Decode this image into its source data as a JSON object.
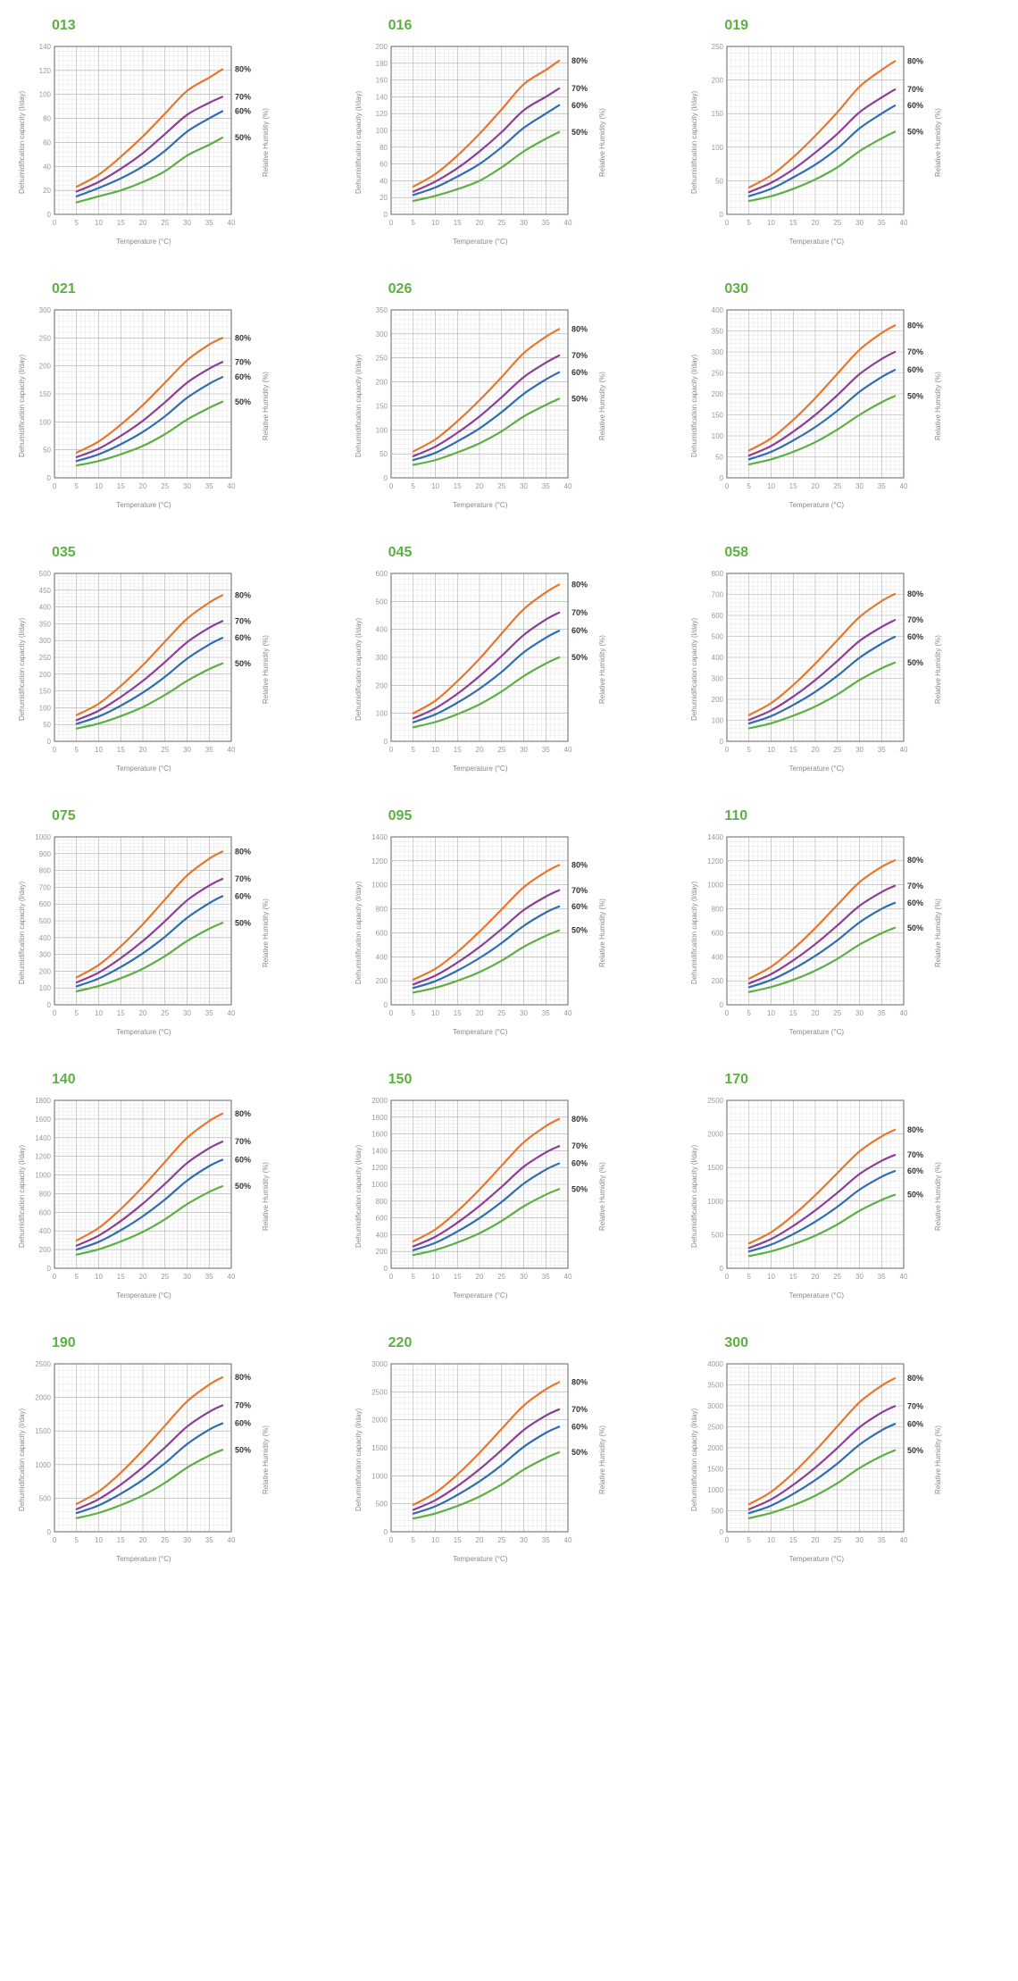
{
  "global": {
    "xlabel": "Temperature (°C)",
    "ylabel_left": "Dehumidification capacity (l/day)",
    "ylabel_right": "Relative Humidity (%)",
    "x_min": 0,
    "x_max": 40,
    "x_tick_step": 5,
    "title_color": "#5cb043",
    "bg_color": "#ffffff",
    "plot_bg": "#ffffff",
    "grid_color_major": "#aaaaaa",
    "grid_color_minor": "#e5e5e5",
    "axis_color": "#666666",
    "tick_text_color": "#999999",
    "line_width": 2.2,
    "title_fontsize": 16,
    "tick_fontsize": 8,
    "label_fontsize": 8,
    "series_label_fontsize": 9,
    "series_labels": [
      "80%",
      "70%",
      "60%",
      "50%"
    ],
    "series_colors": [
      "#e8762d",
      "#8e3d96",
      "#2f6db1",
      "#5cb043"
    ],
    "x_values": [
      5,
      10,
      15,
      20,
      25,
      30,
      35,
      38
    ]
  },
  "charts": [
    {
      "title": "013",
      "y_max": 140,
      "y_tick_step": 20,
      "series": [
        [
          23,
          33,
          48,
          65,
          84,
          103,
          114,
          121
        ],
        [
          19,
          27,
          38,
          51,
          67,
          83,
          93,
          98
        ],
        [
          15,
          22,
          30,
          40,
          53,
          69,
          80,
          86
        ],
        [
          10,
          15,
          20,
          27,
          36,
          49,
          58,
          64
        ]
      ]
    },
    {
      "title": "016",
      "y_max": 200,
      "y_tick_step": 20,
      "series": [
        [
          33,
          48,
          70,
          96,
          125,
          155,
          172,
          183
        ],
        [
          27,
          39,
          55,
          75,
          98,
          124,
          140,
          150
        ],
        [
          23,
          32,
          45,
          60,
          80,
          103,
          120,
          130
        ],
        [
          16,
          22,
          30,
          40,
          56,
          75,
          90,
          98
        ]
      ]
    },
    {
      "title": "019",
      "y_max": 250,
      "y_tick_step": 50,
      "series": [
        [
          40,
          58,
          85,
          117,
          152,
          190,
          215,
          228
        ],
        [
          33,
          47,
          67,
          92,
          120,
          152,
          174,
          186
        ],
        [
          27,
          38,
          55,
          74,
          98,
          128,
          150,
          162
        ],
        [
          20,
          27,
          38,
          52,
          70,
          94,
          113,
          123
        ]
      ]
    },
    {
      "title": "021",
      "y_max": 300,
      "y_tick_step": 50,
      "series": [
        [
          45,
          65,
          95,
          130,
          170,
          210,
          238,
          250
        ],
        [
          37,
          52,
          75,
          102,
          135,
          170,
          195,
          207
        ],
        [
          30,
          42,
          60,
          82,
          110,
          143,
          168,
          180
        ],
        [
          22,
          30,
          42,
          57,
          78,
          104,
          125,
          136
        ]
      ]
    },
    {
      "title": "026",
      "y_max": 350,
      "y_tick_step": 50,
      "series": [
        [
          55,
          80,
          118,
          162,
          210,
          260,
          294,
          310
        ],
        [
          45,
          65,
          94,
          128,
          168,
          210,
          240,
          255
        ],
        [
          37,
          52,
          76,
          103,
          137,
          175,
          205,
          220
        ],
        [
          27,
          37,
          53,
          72,
          97,
          128,
          152,
          165
        ]
      ]
    },
    {
      "title": "030",
      "y_max": 400,
      "y_tick_step": 50,
      "series": [
        [
          65,
          94,
          138,
          190,
          248,
          305,
          345,
          363
        ],
        [
          53,
          76,
          110,
          150,
          197,
          247,
          283,
          300
        ],
        [
          44,
          62,
          89,
          121,
          160,
          205,
          240,
          257
        ],
        [
          32,
          44,
          62,
          85,
          115,
          150,
          180,
          195
        ]
      ]
    },
    {
      "title": "035",
      "y_max": 500,
      "y_tick_step": 50,
      "series": [
        [
          78,
          112,
          165,
          227,
          297,
          365,
          413,
          435
        ],
        [
          63,
          91,
          132,
          180,
          236,
          295,
          338,
          358
        ],
        [
          52,
          74,
          106,
          145,
          192,
          246,
          288,
          308
        ],
        [
          38,
          53,
          75,
          102,
          138,
          180,
          215,
          232
        ]
      ]
    },
    {
      "title": "045",
      "y_max": 600,
      "y_tick_step": 100,
      "series": [
        [
          100,
          145,
          215,
          295,
          385,
          472,
          532,
          560
        ],
        [
          82,
          118,
          170,
          233,
          305,
          380,
          435,
          460
        ],
        [
          68,
          96,
          138,
          188,
          248,
          318,
          370,
          395
        ],
        [
          50,
          69,
          97,
          132,
          178,
          233,
          278,
          300
        ]
      ]
    },
    {
      "title": "058",
      "y_max": 800,
      "y_tick_step": 100,
      "series": [
        [
          125,
          182,
          268,
          370,
          482,
          592,
          668,
          702
        ],
        [
          102,
          147,
          213,
          292,
          383,
          478,
          545,
          578
        ],
        [
          85,
          120,
          173,
          236,
          312,
          398,
          465,
          498
        ],
        [
          62,
          86,
          122,
          166,
          223,
          292,
          348,
          375
        ]
      ]
    },
    {
      "title": "075",
      "y_max": 1000,
      "y_tick_step": 100,
      "series": [
        [
          163,
          237,
          348,
          480,
          627,
          770,
          870,
          913
        ],
        [
          133,
          192,
          278,
          380,
          498,
          622,
          710,
          750
        ],
        [
          110,
          156,
          225,
          307,
          405,
          518,
          605,
          647
        ],
        [
          80,
          112,
          158,
          215,
          290,
          380,
          453,
          488
        ]
      ]
    },
    {
      "title": "095",
      "y_max": 1400,
      "y_tick_step": 200,
      "series": [
        [
          210,
          300,
          440,
          610,
          795,
          980,
          1108,
          1165
        ],
        [
          170,
          243,
          352,
          482,
          632,
          790,
          902,
          955
        ],
        [
          140,
          197,
          285,
          390,
          515,
          658,
          770,
          820
        ],
        [
          102,
          142,
          200,
          273,
          368,
          483,
          575,
          620
        ]
      ]
    },
    {
      "title": "110",
      "y_max": 1400,
      "y_tick_step": 200,
      "series": [
        [
          218,
          317,
          465,
          640,
          833,
          1022,
          1150,
          1205
        ],
        [
          178,
          256,
          370,
          506,
          662,
          825,
          940,
          992
        ],
        [
          146,
          207,
          298,
          408,
          538,
          687,
          800,
          850
        ],
        [
          107,
          148,
          208,
          285,
          383,
          502,
          597,
          642
        ]
      ]
    },
    {
      "title": "140",
      "y_max": 1800,
      "y_tick_step": 200,
      "series": [
        [
          298,
          432,
          635,
          875,
          1140,
          1398,
          1578,
          1658
        ],
        [
          243,
          350,
          507,
          693,
          905,
          1128,
          1287,
          1358
        ],
        [
          200,
          283,
          408,
          558,
          737,
          940,
          1095,
          1163
        ],
        [
          146,
          203,
          287,
          390,
          525,
          688,
          818,
          880
        ]
      ]
    },
    {
      "title": "150",
      "y_max": 2000,
      "y_tick_step": 200,
      "series": [
        [
          320,
          463,
          680,
          938,
          1222,
          1500,
          1693,
          1778
        ],
        [
          260,
          375,
          543,
          743,
          970,
          1210,
          1380,
          1455
        ],
        [
          215,
          303,
          438,
          598,
          790,
          1008,
          1175,
          1248
        ],
        [
          157,
          218,
          307,
          418,
          563,
          738,
          877,
          943
        ]
      ]
    },
    {
      "title": "170",
      "y_max": 2500,
      "y_tick_step": 500,
      "series": [
        [
          370,
          536,
          788,
          1088,
          1417,
          1740,
          1963,
          2062
        ],
        [
          302,
          435,
          630,
          862,
          1125,
          1403,
          1600,
          1687
        ],
        [
          250,
          352,
          508,
          694,
          916,
          1170,
          1362,
          1448
        ],
        [
          182,
          252,
          356,
          485,
          653,
          856,
          1017,
          1094
        ]
      ]
    },
    {
      "title": "190",
      "y_max": 2500,
      "y_tick_step": 500,
      "series": [
        [
          413,
          598,
          878,
          1213,
          1580,
          1940,
          2190,
          2300
        ],
        [
          336,
          485,
          702,
          961,
          1255,
          1565,
          1785,
          1882
        ],
        [
          278,
          392,
          566,
          774,
          1022,
          1305,
          1520,
          1614
        ],
        [
          203,
          281,
          397,
          541,
          728,
          955,
          1134,
          1220
        ]
      ]
    },
    {
      "title": "220",
      "y_max": 3000,
      "y_tick_step": 500,
      "series": [
        [
          480,
          695,
          1022,
          1410,
          1837,
          2255,
          2545,
          2672
        ],
        [
          391,
          563,
          816,
          1117,
          1460,
          1818,
          2075,
          2187
        ],
        [
          323,
          455,
          658,
          900,
          1188,
          1517,
          1767,
          1877
        ],
        [
          236,
          327,
          461,
          629,
          846,
          1110,
          1319,
          1418
        ]
      ]
    },
    {
      "title": "300",
      "y_max": 4000,
      "y_tick_step": 500,
      "series": [
        [
          655,
          950,
          1398,
          1930,
          2513,
          3085,
          3480,
          3655
        ],
        [
          535,
          770,
          1117,
          1528,
          1997,
          2487,
          2838,
          2993
        ],
        [
          442,
          623,
          900,
          1231,
          1625,
          2075,
          2417,
          2568
        ],
        [
          323,
          447,
          630,
          860,
          1158,
          1518,
          1804,
          1940
        ]
      ]
    }
  ]
}
